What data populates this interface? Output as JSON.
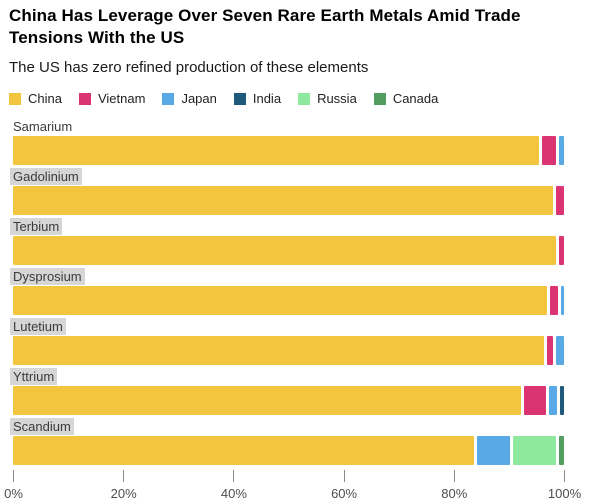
{
  "header": {
    "title": "China Has Leverage Over Seven Rare Earth Metals Amid Trade Tensions With the US",
    "subtitle": "The US has zero refined production of these elements"
  },
  "colors": {
    "china": "#F3C43E",
    "vietnam": "#DA3572",
    "japan": "#58A9E6",
    "india": "#1F5A7D",
    "russia": "#8EE89E",
    "canada": "#519E5F",
    "category_label_highlight": "#D6D6D6"
  },
  "chart_data": {
    "type": "bar",
    "orientation": "horizontal-stacked",
    "unit": "percent share of refined production",
    "title": "China Has Leverage Over Seven Rare Earth Metals Amid Trade Tensions With the US",
    "subtitle": "The US has zero refined production of these elements",
    "categories": [
      "Samarium",
      "Gadolinium",
      "Terbium",
      "Dysprosium",
      "Lutetium",
      "Yttrium",
      "Scandium"
    ],
    "category_label_highlighted": [
      false,
      true,
      true,
      true,
      true,
      true,
      true
    ],
    "series": [
      {
        "name": "China",
        "color": "#F3C43E",
        "values": [
          96.5,
          98.5,
          99.0,
          98.0,
          97.5,
          93.7,
          85.0
        ]
      },
      {
        "name": "Vietnam",
        "color": "#DA3572",
        "values": [
          2.5,
          1.5,
          1.0,
          1.5,
          1.0,
          4.0,
          0
        ]
      },
      {
        "name": "Japan",
        "color": "#58A9E6",
        "values": [
          1.0,
          0,
          0,
          0.5,
          1.5,
          1.6,
          6.2
        ]
      },
      {
        "name": "India",
        "color": "#1F5A7D",
        "values": [
          0,
          0,
          0,
          0,
          0,
          0.7,
          0
        ]
      },
      {
        "name": "Russia",
        "color": "#8EE89E",
        "values": [
          0,
          0,
          0,
          0,
          0,
          0,
          7.8
        ]
      },
      {
        "name": "Canada",
        "color": "#519E5F",
        "values": [
          0,
          0,
          0,
          0,
          0,
          0,
          1.0
        ]
      }
    ],
    "x_axis": {
      "ticks": [
        "0%",
        "20%",
        "40%",
        "60%",
        "80%",
        "100%"
      ],
      "range": [
        0,
        100
      ],
      "grid": false
    },
    "legend": {
      "position": "top",
      "entries": [
        "China",
        "Vietnam",
        "Japan",
        "India",
        "Russia",
        "Canada"
      ]
    }
  }
}
